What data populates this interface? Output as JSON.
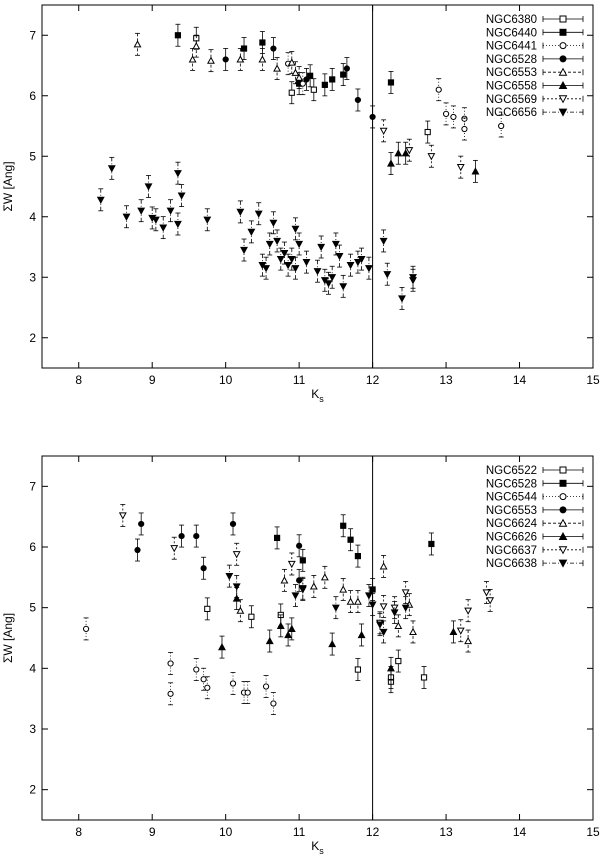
{
  "chart_data": [
    {
      "type": "scatter",
      "xlabel": "K",
      "xlabel_sub": "s",
      "ylabel": "ΣW [Ang]",
      "xlim": [
        7.5,
        15
      ],
      "ylim": [
        1.5,
        7.5
      ],
      "xticks": [
        "8",
        "9",
        "10",
        "11",
        "12",
        "13",
        "14",
        "15"
      ],
      "yticks": [
        "2",
        "3",
        "4",
        "5",
        "6",
        "7"
      ],
      "vline": 12,
      "legend_position": "top-right",
      "series": [
        {
          "name": "NGC6380",
          "marker": "square-open",
          "points": [
            [
              9.6,
              6.95
            ],
            [
              10.9,
              6.05
            ],
            [
              11.2,
              6.1
            ],
            [
              12.75,
              5.4
            ]
          ]
        },
        {
          "name": "NGC6440",
          "marker": "square-filled",
          "points": [
            [
              9.35,
              7.0
            ],
            [
              10.25,
              6.78
            ],
            [
              10.5,
              6.88
            ],
            [
              11.0,
              6.2
            ],
            [
              11.15,
              6.33
            ],
            [
              11.35,
              6.18
            ],
            [
              11.45,
              6.27
            ],
            [
              11.6,
              6.35
            ],
            [
              12.25,
              6.22
            ]
          ]
        },
        {
          "name": "NGC6441",
          "marker": "circle-open",
          "points": [
            [
              10.85,
              6.53
            ],
            [
              11.05,
              6.2
            ],
            [
              12.9,
              6.1
            ],
            [
              13.0,
              5.7
            ],
            [
              13.1,
              5.65
            ],
            [
              13.25,
              5.62
            ],
            [
              13.25,
              5.45
            ],
            [
              13.75,
              5.5
            ]
          ]
        },
        {
          "name": "NGC6528",
          "marker": "circle-filled",
          "points": [
            [
              10.0,
              6.6
            ],
            [
              10.65,
              6.78
            ],
            [
              11.1,
              6.27
            ],
            [
              11.65,
              6.45
            ],
            [
              11.8,
              5.93
            ],
            [
              12.0,
              5.65
            ]
          ]
        },
        {
          "name": "NGC6553",
          "marker": "triangle-up-open",
          "points": [
            [
              8.8,
              6.85
            ],
            [
              9.55,
              6.6
            ],
            [
              9.6,
              6.82
            ],
            [
              9.8,
              6.58
            ],
            [
              10.2,
              6.6
            ],
            [
              10.5,
              6.6
            ],
            [
              10.7,
              6.45
            ],
            [
              10.9,
              6.55
            ],
            [
              10.95,
              6.38
            ],
            [
              11.0,
              6.3
            ]
          ]
        },
        {
          "name": "NGC6558",
          "marker": "triangle-up-filled",
          "points": [
            [
              12.25,
              4.88
            ],
            [
              12.35,
              5.05
            ],
            [
              12.45,
              5.05
            ],
            [
              13.4,
              4.75
            ]
          ]
        },
        {
          "name": "NGC6569",
          "marker": "triangle-down-open",
          "points": [
            [
              12.15,
              5.42
            ],
            [
              12.5,
              5.1
            ],
            [
              12.8,
              5.0
            ],
            [
              13.2,
              4.82
            ]
          ]
        },
        {
          "name": "NGC6656",
          "marker": "triangle-down-filled",
          "points": [
            [
              8.3,
              4.28
            ],
            [
              8.45,
              4.8
            ],
            [
              8.65,
              4.0
            ],
            [
              8.85,
              4.1
            ],
            [
              8.95,
              4.5
            ],
            [
              9.0,
              3.98
            ],
            [
              9.05,
              3.95
            ],
            [
              9.15,
              3.82
            ],
            [
              9.25,
              4.1
            ],
            [
              9.35,
              3.88
            ],
            [
              9.35,
              4.72
            ],
            [
              9.4,
              4.35
            ],
            [
              9.75,
              3.95
            ],
            [
              10.2,
              4.08
            ],
            [
              10.25,
              3.45
            ],
            [
              10.35,
              3.75
            ],
            [
              10.45,
              4.05
            ],
            [
              10.5,
              3.2
            ],
            [
              10.55,
              3.15
            ],
            [
              10.6,
              3.55
            ],
            [
              10.65,
              3.9
            ],
            [
              10.7,
              3.6
            ],
            [
              10.75,
              3.3
            ],
            [
              10.8,
              3.4
            ],
            [
              10.85,
              3.2
            ],
            [
              10.9,
              3.3
            ],
            [
              10.95,
              3.15
            ],
            [
              10.95,
              3.8
            ],
            [
              11.0,
              3.55
            ],
            [
              11.1,
              3.25
            ],
            [
              11.25,
              3.1
            ],
            [
              11.3,
              3.5
            ],
            [
              11.35,
              2.95
            ],
            [
              11.4,
              2.9
            ],
            [
              11.45,
              3.0
            ],
            [
              11.5,
              3.55
            ],
            [
              11.55,
              3.35
            ],
            [
              11.6,
              2.85
            ],
            [
              11.7,
              3.2
            ],
            [
              11.8,
              3.25
            ],
            [
              11.85,
              3.3
            ],
            [
              11.95,
              3.15
            ],
            [
              12.15,
              3.6
            ],
            [
              12.2,
              3.05
            ],
            [
              12.4,
              2.65
            ],
            [
              12.55,
              2.95
            ],
            [
              12.55,
              3.0
            ]
          ]
        }
      ]
    },
    {
      "type": "scatter",
      "xlabel": "K",
      "xlabel_sub": "s",
      "ylabel": "ΣW [Ang]",
      "xlim": [
        7.5,
        15
      ],
      "ylim": [
        1.5,
        7.5
      ],
      "xticks": [
        "8",
        "9",
        "10",
        "11",
        "12",
        "13",
        "14",
        "15"
      ],
      "yticks": [
        "2",
        "3",
        "4",
        "5",
        "6",
        "7"
      ],
      "vline": 12,
      "legend_position": "top-right",
      "series": [
        {
          "name": "NGC6522",
          "marker": "square-open",
          "points": [
            [
              9.75,
              4.98
            ],
            [
              10.35,
              4.85
            ],
            [
              10.75,
              4.88
            ],
            [
              11.8,
              3.98
            ],
            [
              12.25,
              3.78
            ],
            [
              12.25,
              3.85
            ],
            [
              12.35,
              4.12
            ],
            [
              12.7,
              3.85
            ]
          ]
        },
        {
          "name": "NGC6528",
          "marker": "square-filled",
          "points": [
            [
              10.7,
              6.15
            ],
            [
              11.05,
              5.78
            ],
            [
              11.6,
              6.35
            ],
            [
              11.7,
              6.12
            ],
            [
              11.8,
              5.85
            ],
            [
              12.0,
              5.3
            ],
            [
              12.8,
              6.05
            ]
          ]
        },
        {
          "name": "NGC6544",
          "marker": "circle-open",
          "points": [
            [
              8.1,
              4.65
            ],
            [
              9.25,
              3.58
            ],
            [
              9.25,
              4.08
            ],
            [
              9.6,
              3.98
            ],
            [
              9.7,
              3.82
            ],
            [
              9.75,
              3.68
            ],
            [
              10.1,
              3.75
            ],
            [
              10.25,
              3.6
            ],
            [
              10.3,
              3.6
            ],
            [
              10.55,
              3.7
            ],
            [
              10.65,
              3.42
            ]
          ]
        },
        {
          "name": "NGC6553",
          "marker": "circle-filled",
          "points": [
            [
              8.8,
              5.95
            ],
            [
              8.85,
              6.38
            ],
            [
              9.4,
              6.18
            ],
            [
              9.6,
              6.18
            ],
            [
              9.7,
              5.65
            ],
            [
              10.1,
              6.38
            ],
            [
              11.0,
              6.02
            ],
            [
              11.0,
              5.45
            ]
          ]
        },
        {
          "name": "NGC6624",
          "marker": "triangle-up-open",
          "points": [
            [
              10.2,
              4.95
            ],
            [
              10.8,
              5.45
            ],
            [
              11.2,
              5.35
            ],
            [
              11.35,
              5.5
            ],
            [
              11.6,
              5.3
            ],
            [
              11.7,
              5.1
            ],
            [
              11.8,
              5.1
            ],
            [
              12.15,
              5.68
            ],
            [
              12.35,
              4.7
            ],
            [
              12.55,
              4.6
            ],
            [
              12.5,
              5.05
            ],
            [
              13.3,
              4.45
            ]
          ]
        },
        {
          "name": "NGC6626",
          "marker": "triangle-up-filled",
          "points": [
            [
              9.95,
              4.35
            ],
            [
              10.15,
              5.15
            ],
            [
              10.6,
              4.45
            ],
            [
              10.75,
              4.7
            ],
            [
              10.85,
              4.55
            ],
            [
              10.9,
              4.65
            ],
            [
              11.45,
              4.4
            ],
            [
              11.85,
              4.55
            ],
            [
              12.25,
              4.0
            ],
            [
              13.1,
              4.6
            ]
          ]
        },
        {
          "name": "NGC6637",
          "marker": "triangle-down-open",
          "points": [
            [
              8.6,
              6.52
            ],
            [
              9.3,
              5.98
            ],
            [
              10.15,
              5.88
            ],
            [
              10.9,
              5.72
            ],
            [
              11.05,
              5.3
            ],
            [
              12.1,
              4.75
            ],
            [
              12.15,
              5.02
            ],
            [
              12.3,
              5.0
            ],
            [
              12.45,
              5.25
            ],
            [
              13.2,
              4.62
            ],
            [
              13.3,
              4.95
            ],
            [
              13.55,
              5.25
            ],
            [
              13.6,
              5.12
            ]
          ]
        },
        {
          "name": "NGC6638",
          "marker": "triangle-down-filled",
          "points": [
            [
              10.05,
              5.52
            ],
            [
              10.15,
              5.35
            ],
            [
              10.95,
              5.2
            ],
            [
              11.05,
              5.32
            ],
            [
              11.5,
              5.0
            ],
            [
              11.95,
              5.2
            ],
            [
              12.0,
              5.05
            ],
            [
              12.1,
              4.72
            ],
            [
              12.15,
              4.6
            ],
            [
              12.3,
              4.92
            ],
            [
              12.45,
              5.0
            ]
          ]
        }
      ]
    }
  ]
}
